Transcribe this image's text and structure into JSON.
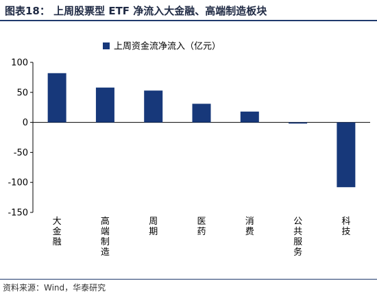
{
  "figure": {
    "title": "图表18：    上周股票型 ETF 净流入大金融、高端制造板块",
    "source": "资料来源：Wind，华泰研究"
  },
  "colors": {
    "bar": "#17387a",
    "axis": "#000000",
    "title": "#1f2a44",
    "rule": "#1f3a6d"
  },
  "chart_data": {
    "type": "bar",
    "title": "",
    "xlabel": "",
    "ylabel": "",
    "legend": {
      "position": "top",
      "entries": [
        "上周资金流净流入（亿元）"
      ]
    },
    "grid": false,
    "ylim": [
      -150,
      100
    ],
    "yticks": [
      100,
      50,
      0,
      -50,
      -100,
      -150
    ],
    "ytick_labels": [
      "100",
      "50",
      "0",
      "-50",
      "-100",
      "-150"
    ],
    "categories": [
      "大金融",
      "高端制造",
      "周期",
      "医药",
      "消费",
      "公共服务",
      "科技"
    ],
    "series": [
      {
        "name": "上周资金流净流入（亿元）",
        "values": [
          82,
          58,
          53,
          31,
          18,
          -2,
          -108
        ]
      }
    ]
  }
}
